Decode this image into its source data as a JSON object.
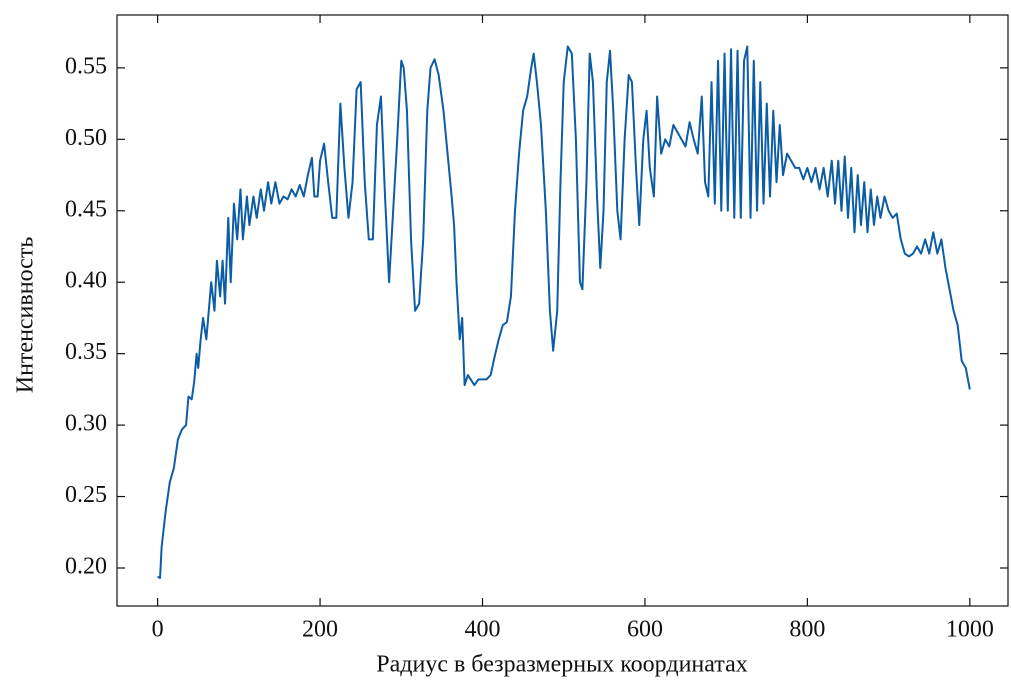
{
  "chart_data": {
    "type": "line",
    "xlabel": "Радиус в безразмерных координатах",
    "ylabel": "Интенсивность",
    "color": "#0c5da5",
    "xlim": [
      -50,
      1047
    ],
    "ylim": [
      0.1734,
      0.587
    ],
    "xticks": [
      0,
      200,
      400,
      600,
      800,
      1000
    ],
    "yticks": [
      {
        "value": 0.2,
        "label": "0.20"
      },
      0.25,
      {
        "value": 0.3,
        "label": "0.30"
      },
      0.35,
      {
        "value": 0.4,
        "label": "0.40"
      },
      0.45,
      {
        "value": 0.5,
        "label": "0.50"
      },
      0.55
    ],
    "x": [
      0,
      3,
      5,
      10,
      15,
      20,
      25,
      30,
      35,
      38,
      42,
      45,
      48,
      50,
      53,
      56,
      60,
      63,
      66,
      70,
      73,
      77,
      80,
      83,
      87,
      90,
      94,
      98,
      102,
      105,
      110,
      113,
      118,
      122,
      127,
      131,
      136,
      140,
      145,
      150,
      155,
      160,
      165,
      170,
      175,
      180,
      185,
      190,
      193,
      197,
      200,
      205,
      210,
      215,
      220,
      225,
      230,
      235,
      240,
      245,
      250,
      255,
      260,
      265,
      270,
      275,
      280,
      285,
      290,
      295,
      300,
      303,
      307,
      312,
      317,
      322,
      327,
      332,
      336,
      341,
      346,
      352,
      357,
      362,
      365,
      368,
      372,
      375,
      378,
      382,
      390,
      395,
      405,
      410,
      415,
      420,
      425,
      430,
      435,
      440,
      445,
      450,
      455,
      460,
      463,
      467,
      472,
      478,
      483,
      487,
      492,
      496,
      500,
      505,
      510,
      515,
      520,
      523,
      528,
      532,
      536,
      541,
      545,
      549,
      553,
      557,
      561,
      566,
      570,
      575,
      580,
      584,
      589,
      593,
      598,
      602,
      606,
      611,
      615,
      620,
      625,
      630,
      635,
      640,
      645,
      650,
      655,
      660,
      665,
      670,
      674,
      678,
      682,
      686,
      690,
      694,
      698,
      702,
      706,
      710,
      714,
      718,
      722,
      726,
      730,
      734,
      738,
      742,
      746,
      750,
      754,
      758,
      762,
      766,
      770,
      775,
      780,
      785,
      790,
      795,
      800,
      805,
      810,
      815,
      820,
      825,
      830,
      834,
      838,
      842,
      846,
      850,
      854,
      858,
      862,
      866,
      870,
      874,
      878,
      882,
      886,
      890,
      895,
      900,
      905,
      910,
      915,
      920,
      925,
      930,
      935,
      940,
      945,
      950,
      955,
      960,
      965,
      970,
      975,
      980,
      985,
      990,
      995,
      1000
    ],
    "values": [
      0.194,
      0.193,
      0.215,
      0.24,
      0.26,
      0.27,
      0.29,
      0.297,
      0.3,
      0.32,
      0.318,
      0.33,
      0.35,
      0.34,
      0.36,
      0.375,
      0.36,
      0.38,
      0.4,
      0.38,
      0.415,
      0.39,
      0.415,
      0.385,
      0.445,
      0.4,
      0.455,
      0.43,
      0.465,
      0.43,
      0.46,
      0.44,
      0.46,
      0.445,
      0.465,
      0.45,
      0.47,
      0.455,
      0.47,
      0.455,
      0.46,
      0.458,
      0.465,
      0.46,
      0.468,
      0.46,
      0.475,
      0.487,
      0.46,
      0.46,
      0.485,
      0.497,
      0.47,
      0.445,
      0.445,
      0.525,
      0.48,
      0.445,
      0.47,
      0.535,
      0.54,
      0.47,
      0.43,
      0.43,
      0.51,
      0.53,
      0.46,
      0.4,
      0.45,
      0.5,
      0.555,
      0.55,
      0.52,
      0.43,
      0.38,
      0.385,
      0.43,
      0.52,
      0.55,
      0.556,
      0.545,
      0.52,
      0.49,
      0.46,
      0.44,
      0.4,
      0.36,
      0.375,
      0.328,
      0.335,
      0.328,
      0.332,
      0.332,
      0.335,
      0.348,
      0.36,
      0.37,
      0.372,
      0.39,
      0.45,
      0.49,
      0.52,
      0.53,
      0.55,
      0.56,
      0.54,
      0.51,
      0.45,
      0.38,
      0.352,
      0.38,
      0.47,
      0.54,
      0.565,
      0.56,
      0.5,
      0.4,
      0.395,
      0.47,
      0.56,
      0.54,
      0.46,
      0.41,
      0.45,
      0.54,
      0.562,
      0.52,
      0.45,
      0.43,
      0.5,
      0.545,
      0.54,
      0.48,
      0.44,
      0.5,
      0.52,
      0.48,
      0.46,
      0.53,
      0.49,
      0.5,
      0.495,
      0.51,
      0.505,
      0.5,
      0.495,
      0.512,
      0.5,
      0.49,
      0.53,
      0.47,
      0.46,
      0.54,
      0.455,
      0.555,
      0.45,
      0.56,
      0.45,
      0.563,
      0.445,
      0.562,
      0.445,
      0.555,
      0.565,
      0.445,
      0.555,
      0.45,
      0.54,
      0.455,
      0.525,
      0.46,
      0.52,
      0.47,
      0.51,
      0.475,
      0.49,
      0.485,
      0.48,
      0.48,
      0.472,
      0.48,
      0.47,
      0.48,
      0.465,
      0.48,
      0.46,
      0.485,
      0.455,
      0.485,
      0.45,
      0.488,
      0.445,
      0.48,
      0.435,
      0.475,
      0.44,
      0.47,
      0.435,
      0.465,
      0.44,
      0.46,
      0.445,
      0.46,
      0.45,
      0.445,
      0.448,
      0.43,
      0.42,
      0.418,
      0.42,
      0.425,
      0.42,
      0.43,
      0.42,
      0.435,
      0.42,
      0.43,
      0.41,
      0.395,
      0.38,
      0.37,
      0.345,
      0.34,
      0.325
    ]
  }
}
